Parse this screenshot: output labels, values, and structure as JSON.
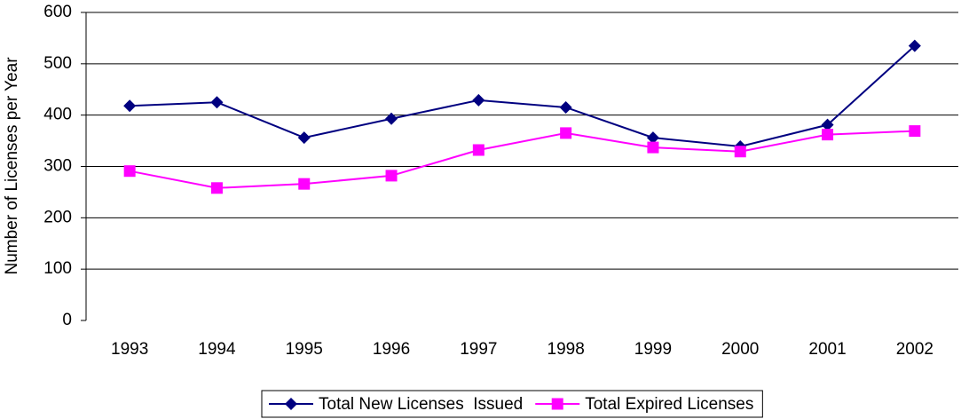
{
  "chart_data": {
    "type": "line",
    "y_label": "Number of Licenses per Year",
    "categories": [
      "1993",
      "1994",
      "1995",
      "1996",
      "1997",
      "1998",
      "1999",
      "2000",
      "2001",
      "2002"
    ],
    "series": [
      {
        "name": "Total New Licenses  Issued",
        "color": "#000080",
        "marker": "diamond",
        "values": [
          418,
          425,
          356,
          393,
          429,
          415,
          356,
          339,
          381,
          535
        ]
      },
      {
        "name": "Total Expired Licenses",
        "color": "#ff00ff",
        "marker": "square",
        "values": [
          291,
          258,
          266,
          282,
          332,
          365,
          337,
          329,
          362,
          369
        ]
      }
    ],
    "ylim": [
      0,
      600
    ],
    "yticks": [
      0,
      100,
      200,
      300,
      400,
      500,
      600
    ],
    "grid": true,
    "legend": "bottom"
  }
}
